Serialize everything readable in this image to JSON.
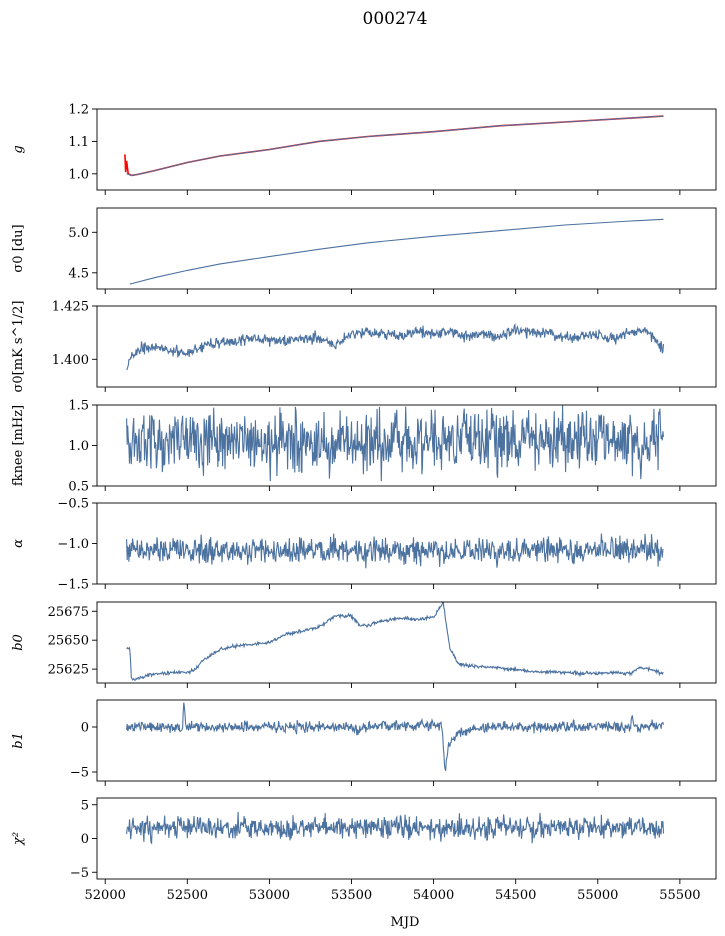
{
  "figure": {
    "title": "000274",
    "xlabel": "MJD"
  },
  "chart_data": {
    "type": "line",
    "title": "000274",
    "xlabel": "MJD",
    "xlim": [
      51950,
      55720
    ],
    "xticks": [
      52000,
      52500,
      53000,
      53500,
      54000,
      54500,
      55000,
      55500
    ],
    "xtick_labels": [
      "52000",
      "52500",
      "53000",
      "53500",
      "54000",
      "54500",
      "55000",
      "55500"
    ],
    "panels": [
      {
        "id": "g",
        "ylabel": "g",
        "ylim": [
          0.95,
          1.2
        ],
        "yticks": [
          1.0,
          1.1,
          1.2
        ],
        "ytick_labels": [
          "1.0",
          "1.1",
          "1.2"
        ],
        "series": [
          {
            "name": "fit",
            "color": "#ff0000",
            "x": [
              52120,
              52125,
              52130,
              52140,
              52160,
              52200,
              52300,
              52500,
              52700,
              53000,
              53300,
              53600,
              54000,
              54400,
              54800,
              55200,
              55400
            ],
            "y": [
              1.06,
              1.005,
              1.04,
              1.0,
              0.995,
              0.998,
              1.01,
              1.035,
              1.055,
              1.075,
              1.1,
              1.115,
              1.13,
              1.148,
              1.16,
              1.172,
              1.178
            ]
          },
          {
            "name": "g",
            "color": "#4c72a0",
            "x": [
              52130,
              52160,
              52200,
              52300,
              52500,
              52700,
              53000,
              53300,
              53600,
              54000,
              54400,
              54800,
              55200,
              55400
            ],
            "y": [
              1.0,
              0.995,
              0.998,
              1.01,
              1.035,
              1.055,
              1.075,
              1.1,
              1.115,
              1.13,
              1.148,
              1.16,
              1.172,
              1.178
            ]
          }
        ]
      },
      {
        "id": "sigma0_du",
        "ylabel": "σ0 [du]",
        "ylim": [
          4.3,
          5.3
        ],
        "yticks": [
          4.5,
          5.0
        ],
        "ytick_labels": [
          "4.5",
          "5.0"
        ],
        "series": [
          {
            "name": "sigma0_du",
            "color": "#4c72a0",
            "x": [
              52150,
              52300,
              52500,
              52700,
              53000,
              53300,
              53600,
              54000,
              54400,
              54800,
              55200,
              55400
            ],
            "y": [
              4.36,
              4.44,
              4.53,
              4.61,
              4.7,
              4.79,
              4.87,
              4.95,
              5.02,
              5.09,
              5.14,
              5.16
            ]
          }
        ]
      },
      {
        "id": "sigma0_mK",
        "ylabel": "σ0[mK s^1/2]",
        "ylim": [
          1.387,
          1.425
        ],
        "yticks": [
          1.4,
          1.425
        ],
        "ytick_labels": [
          "1.400",
          "1.425"
        ],
        "series": [
          {
            "name": "sigma0_mK",
            "color": "#4c72a0",
            "x": [
              52130,
              52150,
              52200,
              52300,
              52400,
              52500,
              52600,
              52700,
              52800,
              52900,
              53000,
              53100,
              53200,
              53300,
              53400,
              53500,
              53600,
              53700,
              53800,
              53900,
              54000,
              54100,
              54200,
              54300,
              54400,
              54500,
              54600,
              54700,
              54800,
              54900,
              55000,
              55100,
              55200,
              55300,
              55350,
              55400
            ],
            "y": [
              1.396,
              1.4,
              1.405,
              1.406,
              1.404,
              1.403,
              1.406,
              1.408,
              1.409,
              1.41,
              1.409,
              1.408,
              1.41,
              1.41,
              1.406,
              1.412,
              1.413,
              1.412,
              1.41,
              1.413,
              1.412,
              1.413,
              1.411,
              1.412,
              1.411,
              1.414,
              1.413,
              1.412,
              1.41,
              1.411,
              1.411,
              1.41,
              1.413,
              1.413,
              1.409,
              1.404
            ],
            "noise": 0.0013,
            "seed": 3
          }
        ]
      },
      {
        "id": "fknee",
        "ylabel": "fknee [mHz]",
        "ylim": [
          0.5,
          1.5
        ],
        "yticks": [
          0.5,
          1.0,
          1.5
        ],
        "ytick_labels": [
          "0.5",
          "1.0",
          "1.5"
        ],
        "series": [
          {
            "name": "fknee",
            "color": "#4c72a0",
            "x": [
              52130,
              55400
            ],
            "y": [
              1.05,
              1.05
            ],
            "noise": 0.19,
            "seed": 7
          }
        ]
      },
      {
        "id": "alpha",
        "ylabel": "α",
        "ylim": [
          -1.5,
          -0.5
        ],
        "yticks": [
          -1.5,
          -1.0,
          -0.5
        ],
        "ytick_labels": [
          "−1.5",
          "−1.0",
          "−0.5"
        ],
        "series": [
          {
            "name": "alpha",
            "color": "#4c72a0",
            "x": [
              52130,
              55400
            ],
            "y": [
              -1.09,
              -1.09
            ],
            "noise": 0.08,
            "seed": 11
          }
        ]
      },
      {
        "id": "b0",
        "ylabel": "b0",
        "ylim": [
          25613,
          25683
        ],
        "yticks": [
          25625,
          25650,
          25675
        ],
        "ytick_labels": [
          "25625",
          "25650",
          "25675"
        ],
        "series": [
          {
            "name": "b0",
            "color": "#4c72a0",
            "x": [
              52130,
              52150,
              52160,
              52200,
              52300,
              52400,
              52500,
              52550,
              52600,
              52700,
              52800,
              53000,
              53100,
              53200,
              53300,
              53400,
              53500,
              53550,
              53600,
              53700,
              53800,
              53900,
              54000,
              54060,
              54080,
              54100,
              54150,
              54200,
              54400,
              54600,
              54800,
              55000,
              55100,
              55200,
              55250,
              55300,
              55400
            ],
            "y": [
              25643,
              25643,
              25616,
              25617,
              25621,
              25622,
              25622,
              25625,
              25633,
              25642,
              25645,
              25648,
              25655,
              25658,
              25661,
              25671,
              25671,
              25663,
              25663,
              25667,
              25669,
              25668,
              25670,
              25683,
              25660,
              25643,
              25630,
              25628,
              25626,
              25623,
              25622,
              25621,
              25622,
              25621,
              25626,
              25626,
              25621
            ],
            "noise": 0.7,
            "seed": 5
          }
        ]
      },
      {
        "id": "b1",
        "ylabel": "b1",
        "ylim": [
          -6,
          3
        ],
        "yticks": [
          -5,
          0
        ],
        "ytick_labels": [
          "−5",
          "0"
        ],
        "series": [
          {
            "name": "b1",
            "color": "#4c72a0",
            "x": [
              52130,
              52470,
              52480,
              52490,
              53530,
              53540,
              53550,
              54050,
              54060,
              54070,
              54080,
              54100,
              54150,
              54250,
              54400,
              55200,
              55210,
              55220,
              55400
            ],
            "y": [
              0,
              0,
              2.8,
              0,
              0,
              -1.2,
              0,
              0.3,
              -2.0,
              -5.2,
              -3.2,
              -1.8,
              -0.7,
              -0.2,
              0,
              0,
              1.5,
              0,
              0
            ],
            "noise": 0.3,
            "seed": 13
          }
        ]
      },
      {
        "id": "chi2",
        "ylabel": "χ²",
        "ylim": [
          -6,
          6
        ],
        "yticks": [
          -5,
          0,
          5
        ],
        "ytick_labels": [
          "−5",
          "0",
          "5"
        ],
        "series": [
          {
            "name": "chi2",
            "color": "#4c72a0",
            "x": [
              52130,
              55400
            ],
            "y": [
              1.6,
              1.6
            ],
            "noise": 0.85,
            "seed": 17
          }
        ]
      }
    ]
  }
}
